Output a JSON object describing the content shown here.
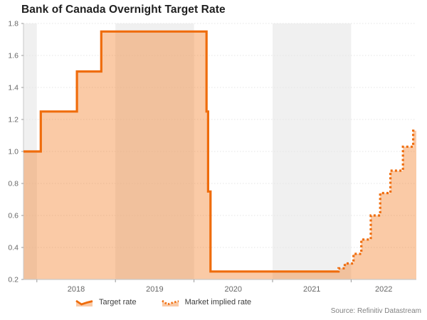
{
  "title": "Bank of Canada Overnight Target Rate",
  "source": "Source: Refinitiv Datastream",
  "legend": [
    {
      "label": "Target rate",
      "icon": "solid-wave-line-icon",
      "style": "solid"
    },
    {
      "label": "Market implied rate",
      "icon": "dotted-wave-line-icon",
      "style": "dotted"
    }
  ],
  "colors": {
    "line": "#ef6c0c",
    "fill": "rgba(243,115,20,0.38)",
    "band": "#f0f0f0",
    "grid": "#e4e4e4",
    "axis_line": "#c9c9c9",
    "tick": "#9a9a9a",
    "label_text": "#666666",
    "title_color": "#1f1f1f"
  },
  "chart_data": {
    "type": "line",
    "step": true,
    "title": "Bank of Canada Overnight Target Rate",
    "xlabel": "",
    "ylabel": "",
    "grid": true,
    "legend_position": "bottom-left",
    "x_axis": {
      "min": 2017.83,
      "max": 2022.83,
      "ticks": [
        2018,
        2019,
        2020,
        2021,
        2022
      ],
      "tick_labels": [
        "2018",
        "2019",
        "2020",
        "2021",
        "2022"
      ]
    },
    "y_axis": {
      "min": 0.2,
      "max": 1.8,
      "ticks": [
        0.2,
        0.4,
        0.6,
        0.8,
        1.0,
        1.2,
        1.4,
        1.6,
        1.8
      ],
      "tick_labels": [
        "0.2",
        "0.4",
        "0.6",
        "0.8",
        "1.0",
        "1.2",
        "1.4",
        "1.6",
        "1.8"
      ]
    },
    "shaded_year_bands": [
      [
        2017.83,
        2018
      ],
      [
        2019,
        2020
      ],
      [
        2021,
        2022
      ]
    ],
    "series": [
      {
        "name": "Target rate",
        "style": "solid",
        "points": [
          [
            2017.83,
            1.0
          ],
          [
            2018.05,
            1.25
          ],
          [
            2018.51,
            1.5
          ],
          [
            2018.82,
            1.75
          ],
          [
            2020.16,
            1.25
          ],
          [
            2020.18,
            0.75
          ],
          [
            2020.21,
            0.25
          ],
          [
            2021.82,
            0.25
          ]
        ]
      },
      {
        "name": "Market implied rate",
        "style": "dotted",
        "points": [
          [
            2021.82,
            0.25
          ],
          [
            2021.84,
            0.27
          ],
          [
            2021.92,
            0.3
          ],
          [
            2022.03,
            0.36
          ],
          [
            2022.13,
            0.45
          ],
          [
            2022.25,
            0.6
          ],
          [
            2022.37,
            0.74
          ],
          [
            2022.5,
            0.88
          ],
          [
            2022.66,
            1.03
          ],
          [
            2022.79,
            1.13
          ],
          [
            2022.83,
            1.13
          ]
        ]
      }
    ]
  }
}
